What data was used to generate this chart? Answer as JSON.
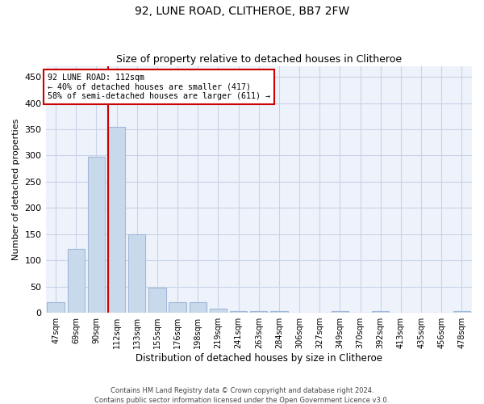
{
  "title": "92, LUNE ROAD, CLITHEROE, BB7 2FW",
  "subtitle": "Size of property relative to detached houses in Clitheroe",
  "xlabel": "Distribution of detached houses by size in Clitheroe",
  "ylabel": "Number of detached properties",
  "footnote1": "Contains HM Land Registry data © Crown copyright and database right 2024.",
  "footnote2": "Contains public sector information licensed under the Open Government Licence v3.0.",
  "annotation_line1": "92 LUNE ROAD: 112sqm",
  "annotation_line2": "← 40% of detached houses are smaller (417)",
  "annotation_line3": "58% of semi-detached houses are larger (611) →",
  "property_size": 112,
  "bar_labels": [
    "47sqm",
    "69sqm",
    "90sqm",
    "112sqm",
    "133sqm",
    "155sqm",
    "176sqm",
    "198sqm",
    "219sqm",
    "241sqm",
    "263sqm",
    "284sqm",
    "306sqm",
    "327sqm",
    "349sqm",
    "370sqm",
    "392sqm",
    "413sqm",
    "435sqm",
    "456sqm",
    "478sqm"
  ],
  "bar_values": [
    20,
    122,
    297,
    355,
    150,
    48,
    21,
    21,
    8,
    4,
    4,
    4,
    0,
    0,
    4,
    0,
    4,
    0,
    0,
    0,
    4
  ],
  "bar_color": "#c9d9ec",
  "bar_edge_color": "#a0b8d8",
  "grid_color": "#c8d4e8",
  "background_color": "#eef2fb",
  "vline_color": "#cc0000",
  "vline_x_index": 3,
  "ylim": [
    0,
    470
  ],
  "yticks": [
    0,
    50,
    100,
    150,
    200,
    250,
    300,
    350,
    400,
    450
  ]
}
